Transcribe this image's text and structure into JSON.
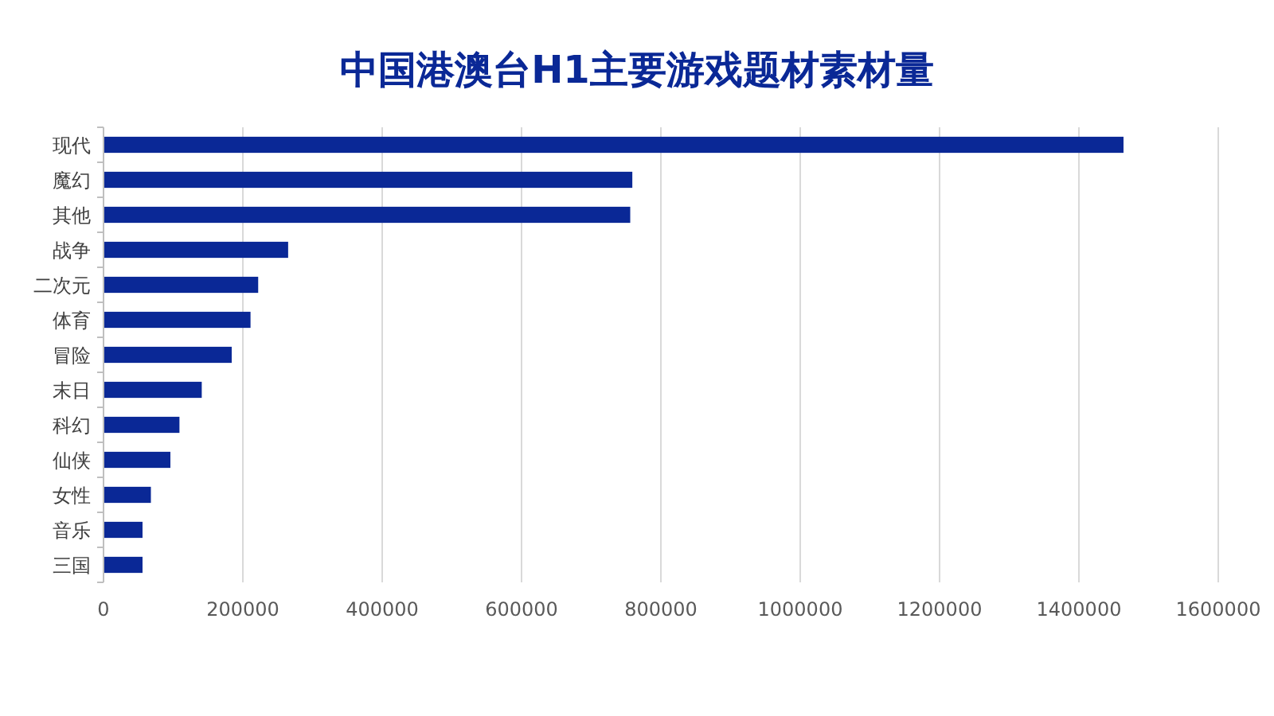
{
  "chart_data": {
    "type": "bar",
    "orientation": "horizontal",
    "title": "中国港澳台H1主要游戏题材素材量",
    "categories": [
      "现代",
      "魔幻",
      "其他",
      "战争",
      "二次元",
      "体育",
      "冒险",
      "末日",
      "科幻",
      "仙侠",
      "女性",
      "音乐",
      "三国"
    ],
    "values": [
      1464000,
      759000,
      756000,
      265000,
      222000,
      211000,
      184000,
      141000,
      109000,
      96000,
      68000,
      56000,
      56000
    ],
    "color": "#0a2896",
    "xlim": [
      0,
      1600000
    ],
    "xticks": [
      0,
      200000,
      400000,
      600000,
      800000,
      1000000,
      1200000,
      1400000,
      1600000
    ],
    "grid": "x"
  }
}
